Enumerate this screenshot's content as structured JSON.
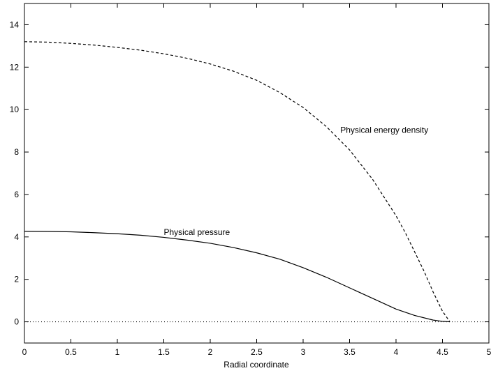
{
  "chart_data": {
    "type": "line",
    "title": "",
    "xlabel": "Radial coordinate",
    "ylabel": "",
    "xlim": [
      0,
      5
    ],
    "ylim": [
      -1,
      15
    ],
    "xticks": [
      "0",
      "0.5",
      "1",
      "1.5",
      "2",
      "2.5",
      "3",
      "3.5",
      "4",
      "4.5",
      "5"
    ],
    "yticks": [
      "0",
      "2",
      "4",
      "6",
      "8",
      "10",
      "12",
      "14"
    ],
    "grid": false,
    "legend": "none",
    "series": [
      {
        "style": "dashed",
        "x": [
          0,
          0.25,
          0.5,
          0.75,
          1.0,
          1.25,
          1.5,
          1.75,
          2.0,
          2.25,
          2.5,
          2.75,
          3.0,
          3.25,
          3.5,
          3.75,
          4.0,
          4.1,
          4.2,
          4.3,
          4.4,
          4.5,
          4.58
        ],
        "y": [
          13.2,
          13.18,
          13.12,
          13.04,
          12.93,
          12.8,
          12.63,
          12.42,
          12.15,
          11.81,
          11.38,
          10.8,
          10.1,
          9.2,
          8.1,
          6.7,
          5.0,
          4.2,
          3.3,
          2.4,
          1.4,
          0.5,
          0.0
        ]
      },
      {
        "style": "solid",
        "x": [
          0,
          0.25,
          0.5,
          0.75,
          1.0,
          1.25,
          1.5,
          1.75,
          2.0,
          2.25,
          2.5,
          2.75,
          3.0,
          3.25,
          3.5,
          3.75,
          4.0,
          4.2,
          4.4,
          4.5,
          4.58
        ],
        "y": [
          4.27,
          4.26,
          4.24,
          4.2,
          4.15,
          4.08,
          3.98,
          3.85,
          3.7,
          3.5,
          3.25,
          2.95,
          2.55,
          2.1,
          1.6,
          1.1,
          0.6,
          0.3,
          0.08,
          0.02,
          0.0
        ]
      },
      {
        "style": "dotted",
        "x": [
          0,
          5
        ],
        "y": [
          0,
          0
        ]
      }
    ],
    "annotations": [
      {
        "text": "Physical energy density",
        "x": 3.4,
        "y": 8.9
      },
      {
        "text": "Physical pressure",
        "x": 1.5,
        "y": 4.1
      }
    ]
  }
}
